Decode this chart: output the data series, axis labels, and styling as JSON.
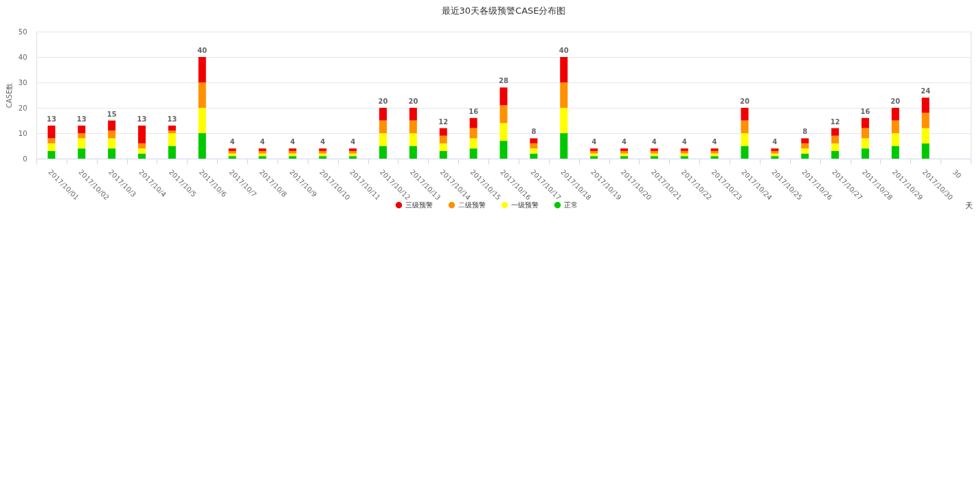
{
  "chart_data": {
    "type": "bar",
    "title": "最近30天各级预警CASE分布图",
    "xlabel": "天",
    "ylabel": "CASE数",
    "categories": [
      "2017/10/01",
      "2017/10/02",
      "2017/10/3",
      "2017/10/4",
      "2017/10/5",
      "2017/10/6",
      "2017/10/7",
      "2017/10/8",
      "2017/10/9",
      "2017/10/10",
      "2017/10/11",
      "2017/10/12",
      "2017/10/13",
      "2017/10/14",
      "2017/10/15",
      "2017/10/16",
      "2017/10/17",
      "2017/10/18",
      "2017/10/19",
      "2017/10/20",
      "2017/10/21",
      "2017/10/22",
      "2017/10/23",
      "2017/10/24",
      "2017/10/25",
      "2017/10/26",
      "2017/10/27",
      "2017/10/28",
      "2017/10/29",
      "2017/10/30",
      "30"
    ],
    "stacked": true,
    "series": [
      {
        "name": "正常",
        "color": "#00c800",
        "values": [
          3,
          4,
          4,
          2,
          5,
          10,
          1,
          1,
          1,
          1,
          1,
          5,
          5,
          3,
          4,
          7,
          2,
          10,
          1,
          1,
          1,
          1,
          1,
          5,
          1,
          2,
          3,
          4,
          5,
          6,
          null
        ]
      },
      {
        "name": "一级预警",
        "color": "#ffff00",
        "values": [
          3,
          4,
          4,
          2,
          5,
          10,
          1,
          1,
          1,
          1,
          1,
          5,
          5,
          3,
          4,
          7,
          2,
          10,
          1,
          1,
          1,
          1,
          1,
          5,
          1,
          2,
          3,
          4,
          5,
          6,
          null
        ]
      },
      {
        "name": "二级预警",
        "color": "#ff9000",
        "values": [
          2,
          2,
          3,
          2,
          1,
          10,
          1,
          1,
          1,
          1,
          1,
          5,
          5,
          3,
          4,
          7,
          2,
          10,
          1,
          1,
          1,
          1,
          1,
          5,
          1,
          2,
          3,
          4,
          5,
          6,
          null
        ]
      },
      {
        "name": "三级预警",
        "color": "#f00000",
        "values": [
          5,
          3,
          4,
          7,
          2,
          10,
          1,
          1,
          1,
          1,
          1,
          5,
          5,
          3,
          4,
          7,
          2,
          10,
          1,
          1,
          1,
          1,
          1,
          5,
          1,
          2,
          3,
          4,
          5,
          6,
          null
        ]
      }
    ],
    "totals": [
      "13",
      "13",
      "15",
      "13",
      "13",
      "40",
      "4",
      "4",
      "4",
      "4",
      "4",
      "20",
      "20",
      "12",
      "16",
      "28",
      "8",
      "40",
      "4",
      "4",
      "4",
      "4",
      "4",
      "20",
      "4",
      "8",
      "12",
      "16",
      "20",
      "24",
      null
    ],
    "ylim": [
      0,
      50
    ],
    "yticks": [
      0,
      10,
      20,
      30,
      40,
      50
    ],
    "grid": "y",
    "legend": "bottom"
  }
}
